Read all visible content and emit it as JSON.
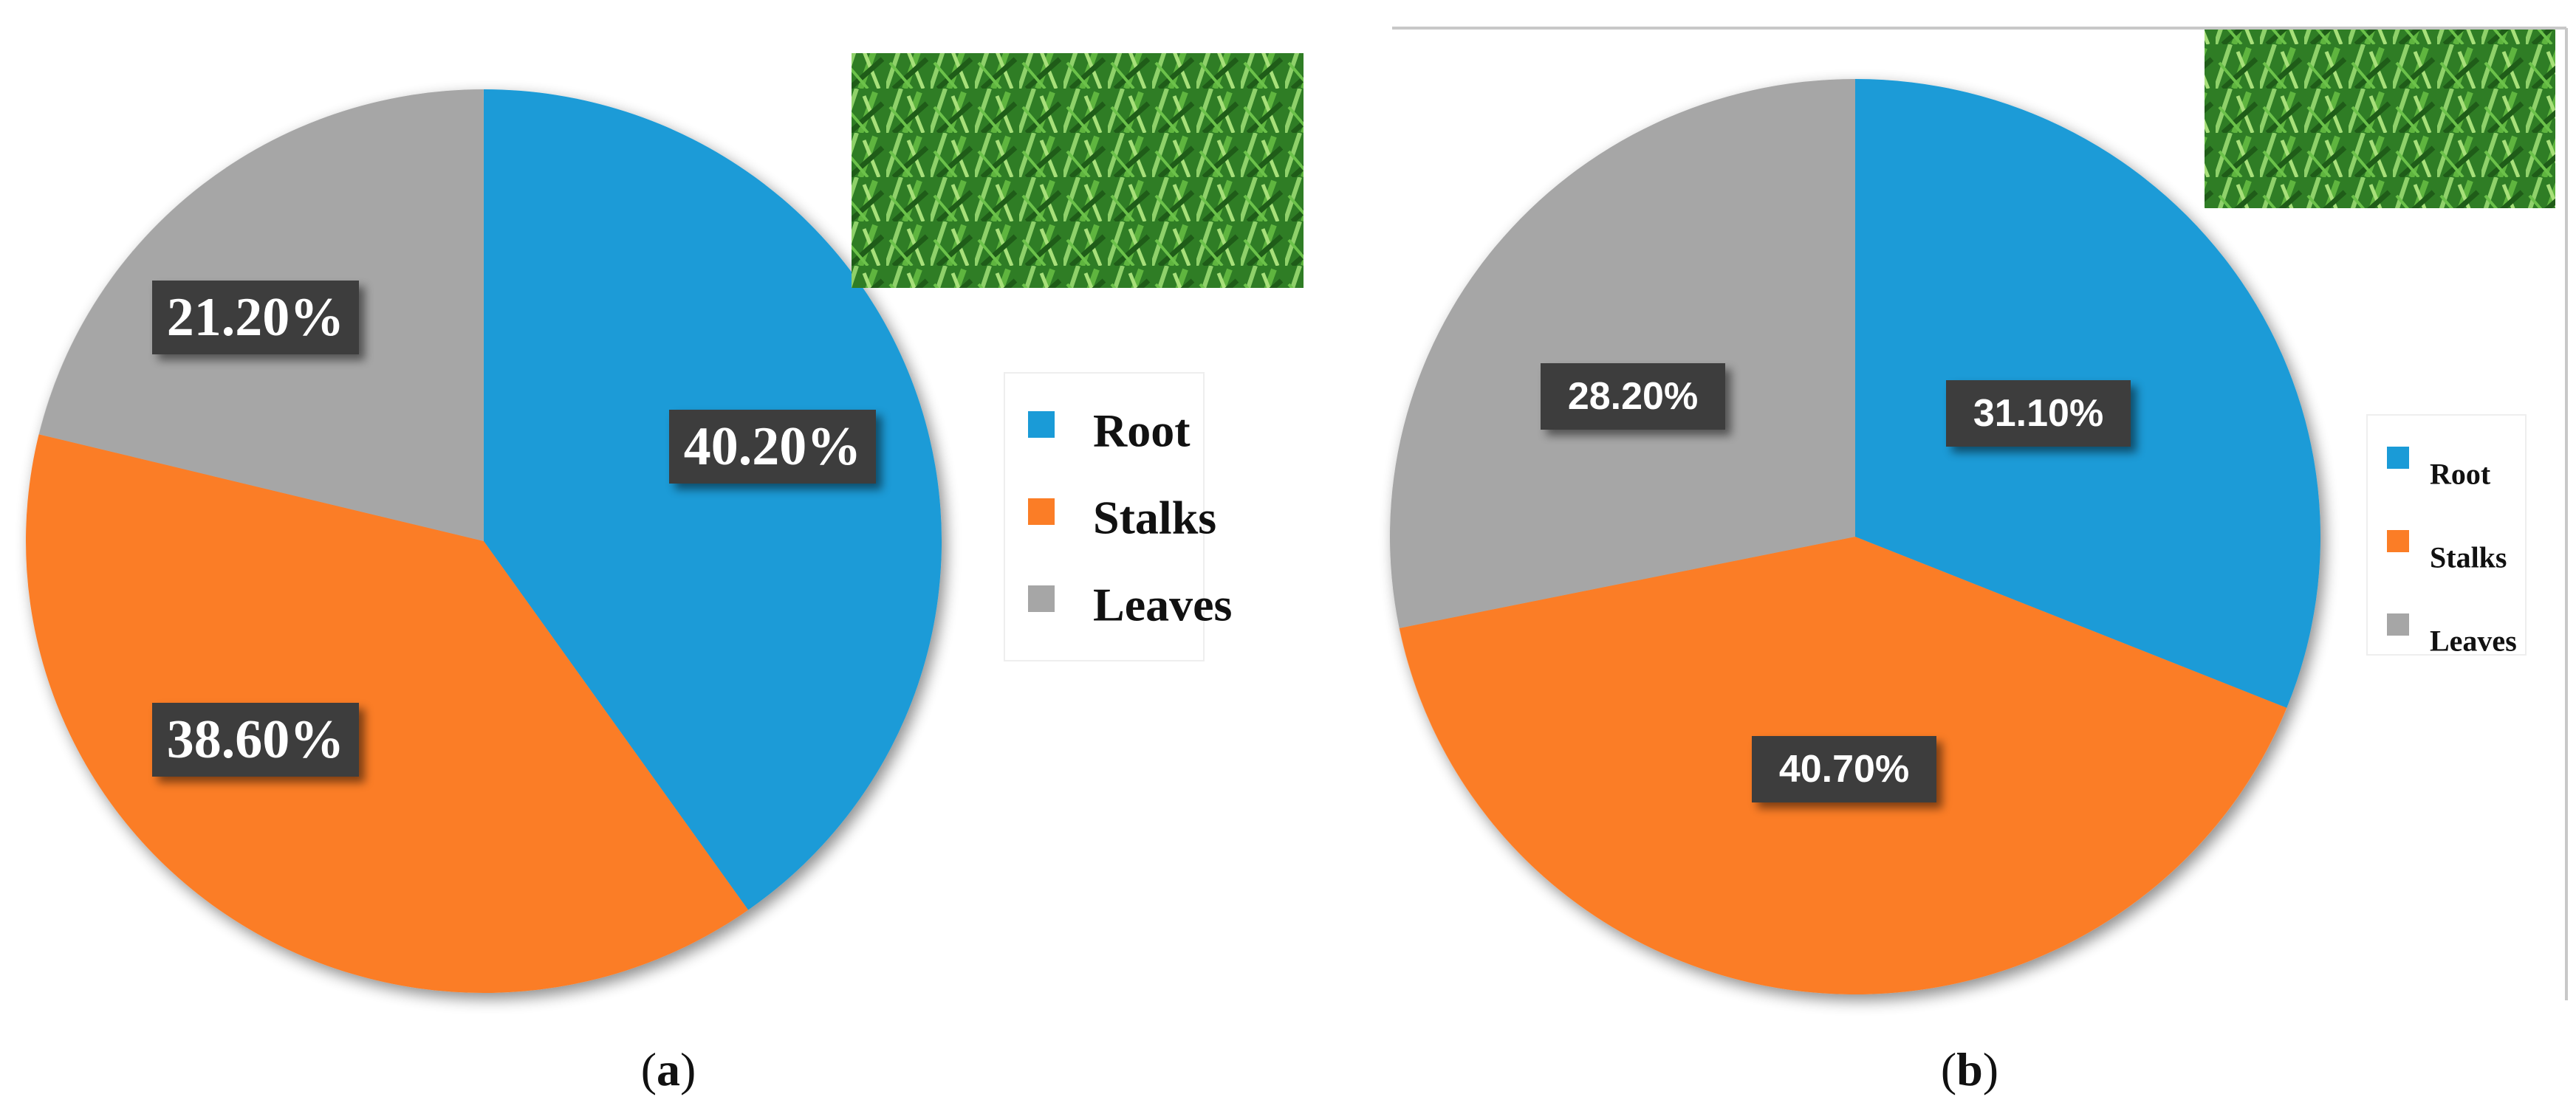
{
  "colors": {
    "Root": "#1a9bd7",
    "Stalks": "#fb7d26",
    "Leaves": "#a6a6a6",
    "label_box": "#3c3c3c",
    "leaf_photo": "#3a8a2c"
  },
  "chart_data": [
    {
      "type": "pie",
      "caption_open": "(",
      "caption_letter": "a",
      "caption_close": ")",
      "categories": [
        "Root",
        "Stalks",
        "Leaves"
      ],
      "values": [
        40.2,
        38.6,
        21.2
      ],
      "labels": [
        "40.20%",
        "38.60%",
        "21.20%"
      ],
      "legend": [
        "Root",
        "Stalks",
        "Leaves"
      ],
      "legend_placement": "right",
      "start_angle": "12 o'clock, clockwise"
    },
    {
      "type": "pie",
      "caption_open": "(",
      "caption_letter": "b",
      "caption_close": ")",
      "categories": [
        "Root",
        "Stalks",
        "Leaves"
      ],
      "values": [
        31.1,
        40.7,
        28.2
      ],
      "labels": [
        "31.10%",
        "40.70%",
        "28.20%"
      ],
      "legend": [
        "Root",
        "Stalks",
        "Leaves"
      ],
      "legend_placement": "right",
      "start_angle": "12 o'clock, clockwise"
    }
  ]
}
